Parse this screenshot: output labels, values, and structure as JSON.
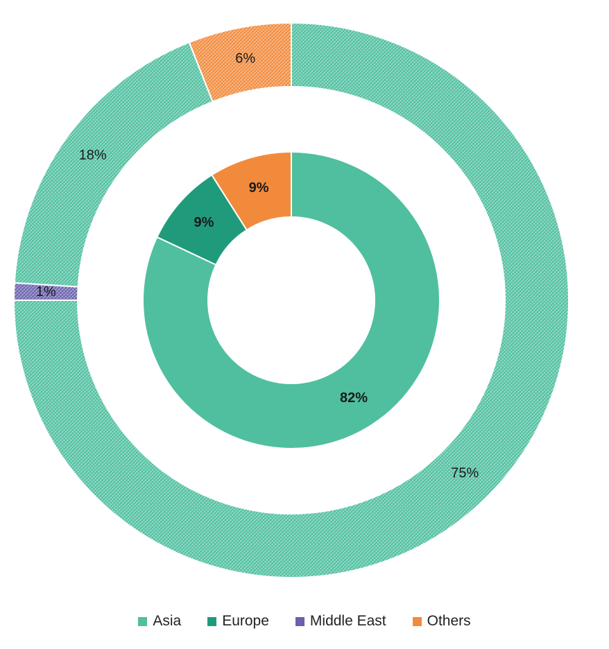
{
  "chart_data": {
    "type": "pie",
    "subtype": "nested-donut",
    "categories": [
      "Asia",
      "Europe",
      "Middle East",
      "Others"
    ],
    "colors": {
      "Asia": "#4fbf9f",
      "Europe": "#1f9b7c",
      "Middle East": "#6a62ad",
      "Others": "#f28a3c"
    },
    "outer_ring": {
      "pattern": "hatched",
      "slices": [
        {
          "category": "Asia",
          "value": 75,
          "label": "75%"
        },
        {
          "category": "Middle East",
          "value": 1,
          "label": "1%"
        },
        {
          "category": "Asia",
          "value": 18,
          "label": "18%"
        },
        {
          "category": "Others",
          "value": 6,
          "label": "6%"
        }
      ]
    },
    "inner_ring": {
      "pattern": "solid",
      "slices": [
        {
          "category": "Asia",
          "value": 82,
          "label": "82%"
        },
        {
          "category": "Europe",
          "value": 9,
          "label": "9%"
        },
        {
          "category": "Others",
          "value": 9,
          "label": "9%"
        }
      ]
    },
    "legend": {
      "position": "bottom",
      "items": [
        {
          "label": "Asia",
          "color": "#4fbf9f"
        },
        {
          "label": "Europe",
          "color": "#1f9b7c"
        },
        {
          "label": "Middle East",
          "color": "#6a62ad"
        },
        {
          "label": "Others",
          "color": "#f28a3c"
        }
      ]
    }
  }
}
